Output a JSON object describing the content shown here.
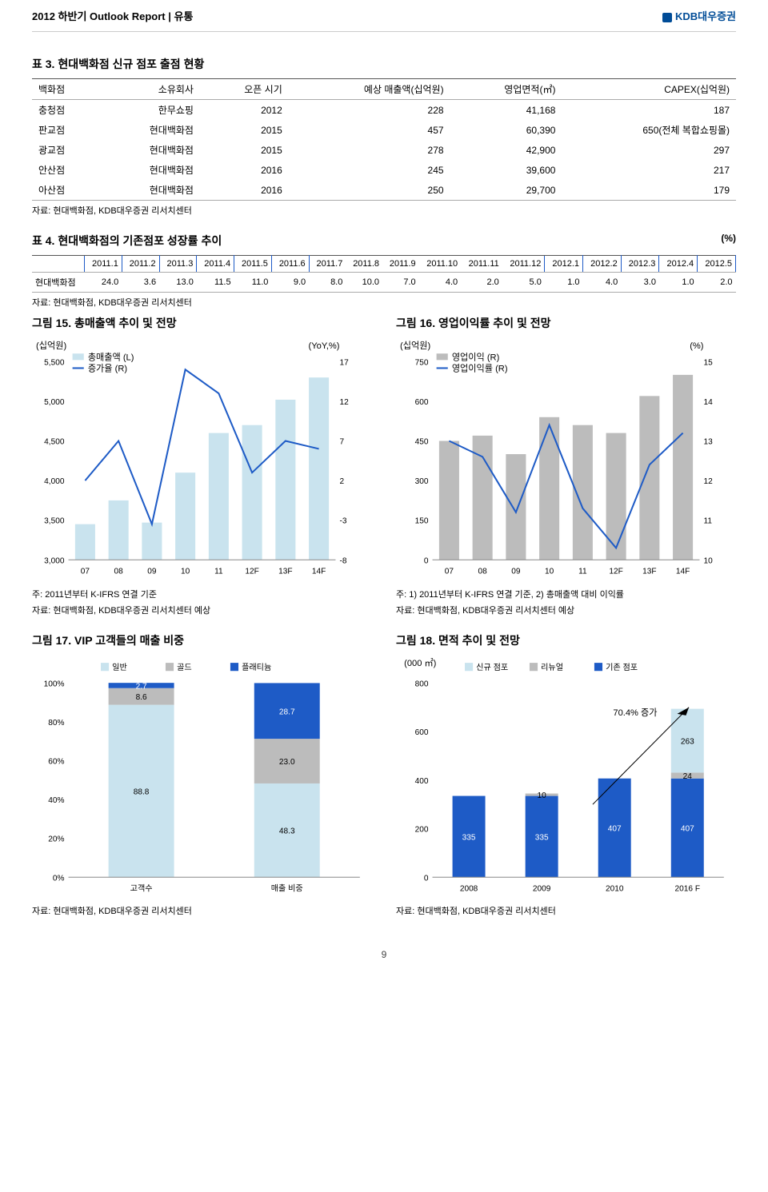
{
  "header": {
    "left": "2012 하반기 Outlook Report | 유통",
    "right": "KDB대우증권"
  },
  "table3": {
    "title": "표 3. 현대백화점 신규 점포 출점 현황",
    "columns": [
      "백화점",
      "소유회사",
      "오픈 시기",
      "예상 매출액(십억원)",
      "영업면적(㎡)",
      "CAPEX(십억원)"
    ],
    "rows": [
      [
        "충청점",
        "한무쇼핑",
        "2012",
        "228",
        "41,168",
        "187"
      ],
      [
        "판교점",
        "현대백화점",
        "2015",
        "457",
        "60,390",
        "650(전체 복합쇼핑몰)"
      ],
      [
        "광교점",
        "현대백화점",
        "2015",
        "278",
        "42,900",
        "297"
      ],
      [
        "안산점",
        "현대백화점",
        "2016",
        "245",
        "39,600",
        "217"
      ],
      [
        "아산점",
        "현대백화점",
        "2016",
        "250",
        "29,700",
        "179"
      ]
    ],
    "source": "자료: 현대백화점, KDB대우증권 리서치센터"
  },
  "table4": {
    "title": "표 4. 현대백화점의 기존점포 성장률 추이",
    "unit": "(%)",
    "columns": [
      "",
      "2011.1",
      "2011.2",
      "2011.3",
      "2011.4",
      "2011.5",
      "2011.6",
      "2011.7",
      "2011.8",
      "2011.9",
      "2011.10",
      "2011.11",
      "2011.12",
      "2012.1",
      "2012.2",
      "2012.3",
      "2012.4",
      "2012.5"
    ],
    "row": [
      "현대백화점",
      "24.0",
      "3.6",
      "13.0",
      "11.5",
      "11.0",
      "9.0",
      "8.0",
      "10.0",
      "7.0",
      "4.0",
      "2.0",
      "5.0",
      "1.0",
      "4.0",
      "3.0",
      "1.0",
      "2.0"
    ],
    "source": "자료: 현대백화점, KDB대우증권 리서치센터"
  },
  "chart15": {
    "title": "그림 15. 총매출액 추이 및 전망",
    "left_unit": "(십억원)",
    "right_unit": "(YoY,%)",
    "legend": [
      "총매출액 (L)",
      "증가율 (R)"
    ],
    "categories": [
      "07",
      "08",
      "09",
      "10",
      "11",
      "12F",
      "13F",
      "14F"
    ],
    "left_ticks": [
      3000,
      3500,
      4000,
      4500,
      5000,
      5500
    ],
    "right_ticks": [
      -8,
      -3,
      2,
      7,
      12,
      17
    ],
    "bars": [
      3450,
      3750,
      3470,
      4100,
      4600,
      4700,
      5020,
      5300
    ],
    "line": [
      2,
      7,
      -3.5,
      16,
      13,
      3,
      7,
      6
    ],
    "bar_color": "#c9e3ee",
    "line_color": "#1e5bc6",
    "note1": "주: 2011년부터 K-IFRS 연결 기준",
    "note2": "자료: 현대백화점, KDB대우증권 리서치센터 예상"
  },
  "chart16": {
    "title": "그림 16. 영업이익률 추이 및 전망",
    "left_unit": "(십억원)",
    "right_unit": "(%)",
    "legend": [
      "영업이익 (R)",
      "영업이익률 (R)"
    ],
    "categories": [
      "07",
      "08",
      "09",
      "10",
      "11",
      "12F",
      "13F",
      "14F"
    ],
    "left_ticks": [
      0,
      150,
      300,
      450,
      600,
      750
    ],
    "right_ticks": [
      10,
      11,
      12,
      13,
      14,
      15
    ],
    "bars": [
      450,
      470,
      400,
      540,
      510,
      480,
      620,
      700
    ],
    "line": [
      13,
      12.6,
      11.2,
      13.4,
      11.3,
      10.3,
      12.4,
      13.2
    ],
    "bar_color": "#bcbcbc",
    "line_color": "#1e5bc6",
    "note1": "주: 1) 2011년부터 K-IFRS 연결 기준, 2) 총매출액 대비 이익률",
    "note2": "자료: 현대백화점, KDB대우증권 리서치센터 예상"
  },
  "chart17": {
    "title": "그림 17. VIP 고객들의 매출 비중",
    "legend": [
      "일반",
      "골드",
      "플래티늄"
    ],
    "legend_colors": [
      "#c9e3ee",
      "#bcbcbc",
      "#1e5bc6"
    ],
    "categories": [
      "고객수",
      "매출 비중"
    ],
    "y_ticks": [
      0,
      20,
      40,
      60,
      80,
      100
    ],
    "stacks": [
      {
        "values": [
          88.8,
          8.6,
          2.7
        ],
        "labels": [
          "88.8",
          "8.6",
          "2.7"
        ]
      },
      {
        "values": [
          48.3,
          23.0,
          28.7
        ],
        "labels": [
          "48.3",
          "23.0",
          "28.7"
        ]
      }
    ],
    "source": "자료: 현대백화점, KDB대우증권 리서치센터"
  },
  "chart18": {
    "title": "그림 18. 면적 추이 및 전망",
    "y_unit": "(000 ㎡)",
    "legend": [
      "신규 점포",
      "리뉴얼",
      "기존 점포"
    ],
    "legend_colors": [
      "#c9e3ee",
      "#bcbcbc",
      "#1e5bc6"
    ],
    "categories": [
      "2008",
      "2009",
      "2010",
      "2016 F"
    ],
    "y_ticks": [
      0,
      200,
      400,
      600,
      800
    ],
    "stacks": [
      {
        "values": [
          335,
          0,
          0
        ],
        "labels": [
          "335",
          "",
          ""
        ]
      },
      {
        "values": [
          335,
          10,
          0
        ],
        "labels": [
          "335",
          "10",
          ""
        ]
      },
      {
        "values": [
          407,
          0,
          0
        ],
        "labels": [
          "407",
          "",
          ""
        ]
      },
      {
        "values": [
          407,
          24,
          263
        ],
        "labels": [
          "407",
          "24",
          "263"
        ]
      }
    ],
    "annotation": "70.4% 증가",
    "source": "자료: 현대백화점, KDB대우증권 리서치센터"
  },
  "page_number": "9"
}
